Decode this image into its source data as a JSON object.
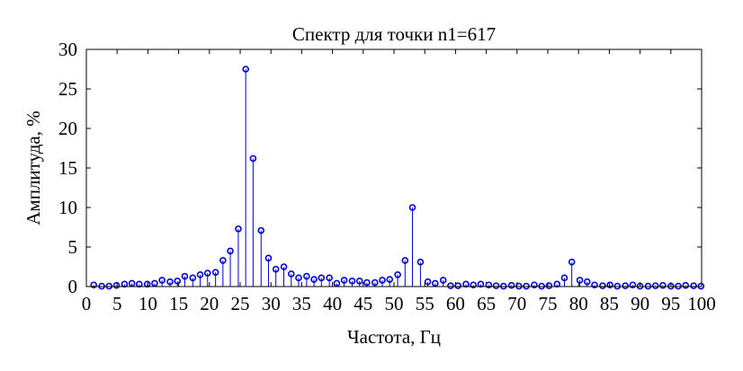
{
  "chart_data": {
    "type": "stem",
    "title": "Спектр для точки n1=617",
    "xlabel": "Частота, Гц",
    "ylabel": "Амплитуда, %",
    "xlim": [
      0,
      100
    ],
    "ylim": [
      0,
      30
    ],
    "xticks": [
      0,
      5,
      10,
      15,
      20,
      25,
      30,
      35,
      40,
      45,
      50,
      55,
      60,
      65,
      70,
      75,
      80,
      85,
      90,
      95,
      100
    ],
    "yticks": [
      0,
      5,
      10,
      15,
      20,
      25,
      30
    ],
    "grid": false,
    "legend": "none",
    "color": "#0000cc",
    "x": [
      1.2,
      2.5,
      3.7,
      4.9,
      6.2,
      7.4,
      8.6,
      9.9,
      11.1,
      12.3,
      13.6,
      14.8,
      16.0,
      17.3,
      18.5,
      19.7,
      21.0,
      22.2,
      23.4,
      24.7,
      25.9,
      27.1,
      28.4,
      29.6,
      30.8,
      32.1,
      33.3,
      34.5,
      35.8,
      37.0,
      38.2,
      39.5,
      40.7,
      41.9,
      43.2,
      44.4,
      45.6,
      46.9,
      48.1,
      49.3,
      50.6,
      51.8,
      53.0,
      54.3,
      55.5,
      56.7,
      58.0,
      59.2,
      60.4,
      61.7,
      62.9,
      64.1,
      65.4,
      66.6,
      67.8,
      69.1,
      70.3,
      71.5,
      72.8,
      74.0,
      75.2,
      76.5,
      77.7,
      78.9,
      80.2,
      81.4,
      82.6,
      83.9,
      85.1,
      86.3,
      87.6,
      88.8,
      90.0,
      91.3,
      92.5,
      93.7,
      95.0,
      96.2,
      97.4,
      98.7,
      99.9
    ],
    "values": [
      0.2,
      0.05,
      0.05,
      0.15,
      0.3,
      0.4,
      0.3,
      0.3,
      0.4,
      0.8,
      0.6,
      0.7,
      1.3,
      1.1,
      1.5,
      1.7,
      1.8,
      3.3,
      4.5,
      7.3,
      27.5,
      16.2,
      7.1,
      3.6,
      2.2,
      2.5,
      1.6,
      1.1,
      1.3,
      0.9,
      1.1,
      1.1,
      0.4,
      0.8,
      0.7,
      0.7,
      0.5,
      0.5,
      0.8,
      0.9,
      1.5,
      3.3,
      10.0,
      3.1,
      0.6,
      0.4,
      0.8,
      0.1,
      0.1,
      0.3,
      0.2,
      0.3,
      0.2,
      0.1,
      0.05,
      0.15,
      0.05,
      0.05,
      0.2,
      0.05,
      0.1,
      0.3,
      1.1,
      3.1,
      0.8,
      0.6,
      0.2,
      0.1,
      0.2,
      0.05,
      0.1,
      0.2,
      0.05,
      0.05,
      0.1,
      0.15,
      0.05,
      0.05,
      0.15,
      0.1,
      0.05
    ]
  }
}
